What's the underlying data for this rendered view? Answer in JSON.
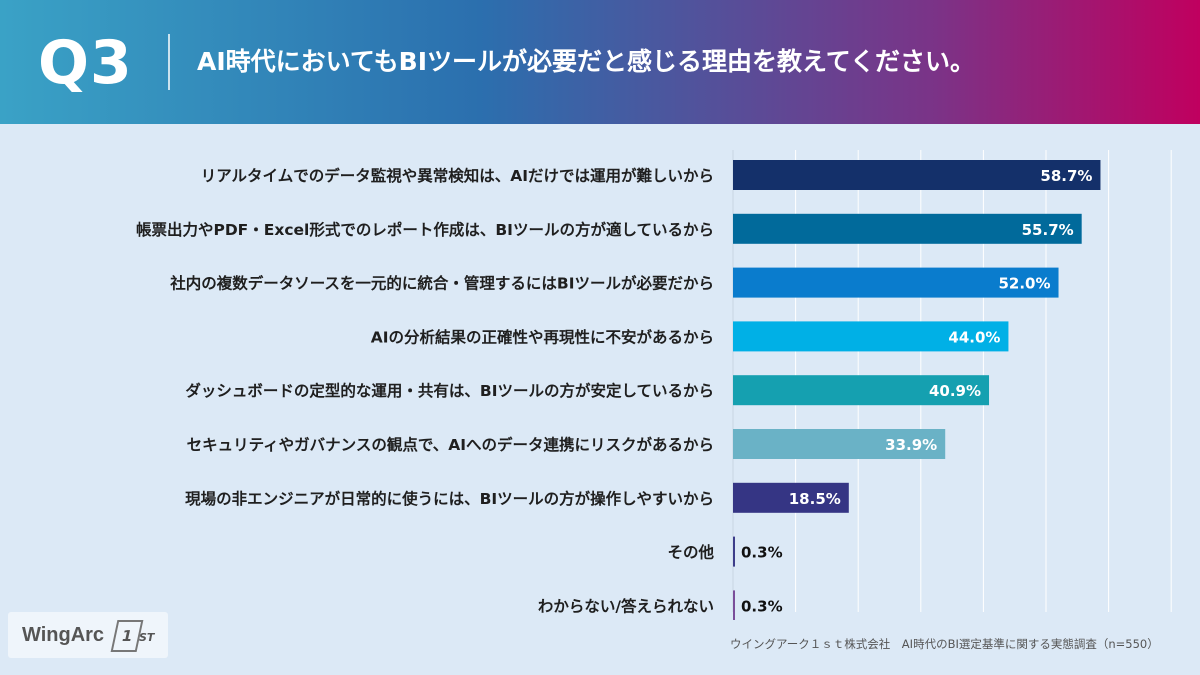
{
  "header": {
    "question_number": "Q3",
    "question_text": "AI時代においてもBIツールが必要だと感じる理由を教えてください。"
  },
  "chart_data": {
    "type": "bar",
    "orientation": "horizontal",
    "categories": [
      "リアルタイムでのデータ監視や異常検知は、AIだけでは運用が難しいから",
      "帳票出力やPDF・Excel形式でのレポート作成は、BIツールの方が適しているから",
      "社内の複数データソースを一元的に統合・管理するにはBIツールが必要だから",
      "AIの分析結果の正確性や再現性に不安があるから",
      "ダッシュボードの定型的な運用・共有は、BIツールの方が安定しているから",
      "セキュリティやガバナンスの観点で、AIへのデータ連携にリスクがあるから",
      "現場の非エンジニアが日常的に使うには、BIツールの方が操作しやすいから",
      "その他",
      "わからない/答えられない"
    ],
    "values": [
      58.7,
      55.7,
      52.0,
      44.0,
      40.9,
      33.9,
      18.5,
      0.3,
      0.3
    ],
    "value_labels": [
      "58.7%",
      "55.7%",
      "52.0%",
      "44.0%",
      "40.9%",
      "33.9%",
      "18.5%",
      "0.3%",
      "0.3%"
    ],
    "colors": [
      "#14306a",
      "#016a9b",
      "#0a7ccd",
      "#00b0e6",
      "#15a0b0",
      "#6ab2c6",
      "#353584",
      "#3d3d8a",
      "#7a4e9a"
    ],
    "label_colors_inside": "#ffffff",
    "label_colors_outside": "#111111",
    "xlim": [
      0,
      70
    ],
    "grid": true
  },
  "footer": {
    "source_note": "ウイングアーク１ｓｔ株式会社　AI時代のBI選定基準に関する実態調査（n=550）",
    "logo_text": "WingArc",
    "logo_mark": "1",
    "logo_suffix": "ST"
  }
}
